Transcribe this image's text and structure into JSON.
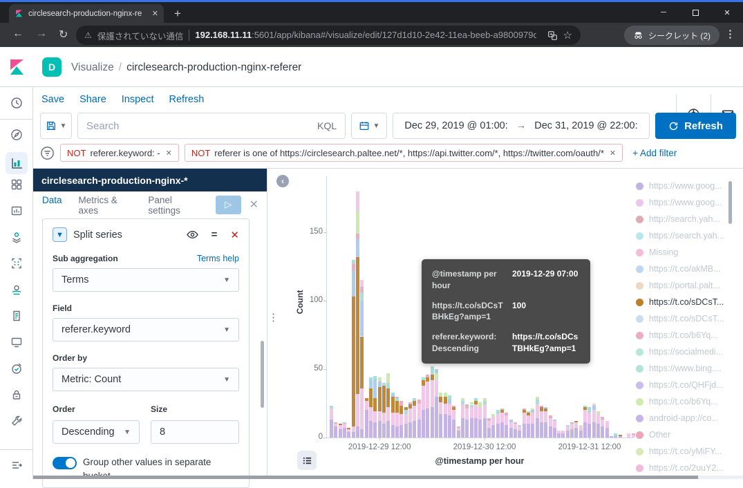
{
  "colors": {
    "primary_link": "#006BB4",
    "danger": "#bd271e",
    "panel_header_bg": "#14304f",
    "refresh_button": "#0071c2",
    "toggle_on": "#0077cc",
    "highlight_series": "#c1883c",
    "kibana_pink": "#f04e98",
    "kibana_teal": "#00bfb3"
  },
  "browser": {
    "tab_title": "circlesearch-production-nginx-re",
    "security_warning": "保護されていない通信",
    "url_host": "192.168.11.11",
    "url_rest": ":5601/app/kibana#/visualize/edit/127d1d10-2e42-11ea-beeb-a9800979c...",
    "incognito_label": "シークレット (2)"
  },
  "header": {
    "space_initial": "D",
    "breadcrumb_app": "Visualize",
    "breadcrumb_sep": "/",
    "breadcrumb_title": "circlesearch-production-nginx-referer"
  },
  "actions": [
    "Save",
    "Share",
    "Inspect",
    "Refresh"
  ],
  "query_bar": {
    "search_placeholder": "Search",
    "kql_label": "KQL",
    "date_from": "Dec 29, 2019 @ 01:00:",
    "date_to": "Dec 31, 2019 @ 22:00:",
    "refresh_label": "Refresh"
  },
  "filters": [
    {
      "prefix": "NOT",
      "text": "referer.keyword: -"
    },
    {
      "prefix": "NOT",
      "text": "referer is one of https://circlesearch.paltee.net/*, https://api.twitter.com/*, https://twitter.com/oauth/*"
    }
  ],
  "add_filter_label": "+ Add filter",
  "editor": {
    "index_pattern": "circlesearch-production-nginx-*",
    "tabs": [
      "Data",
      "Metrics & axes",
      "Panel settings"
    ],
    "active_tab": "Data",
    "split_series_label": "Split series",
    "sub_aggregation_label": "Sub aggregation",
    "terms_help_label": "Terms help",
    "sub_aggregation_value": "Terms",
    "field_label": "Field",
    "field_value": "referer.keyword",
    "order_by_label": "Order by",
    "order_by_value": "Metric: Count",
    "order_label": "Order",
    "order_value": "Descending",
    "size_label": "Size",
    "size_value": "8",
    "group_other_label": "Group other values in separate bucket"
  },
  "tooltip": {
    "rows": [
      {
        "label": "@timestamp per hour",
        "value": "2019-12-29 07:00"
      },
      {
        "label": "https://t.co/sDCsTBHkEg?amp=1",
        "value": "100"
      },
      {
        "label": "referer.keyword: Descending",
        "value": "https://t.co/sDCsTBHkEg?amp=1"
      }
    ]
  },
  "legend": {
    "items": [
      {
        "label": "https://www.goog...",
        "color": "#c1b3e3",
        "active": false
      },
      {
        "label": "https://www.goog...",
        "color": "#eec6ea",
        "active": false
      },
      {
        "label": "http://search.yah...",
        "color": "#ddacb0",
        "active": false
      },
      {
        "label": "https://search.yah...",
        "color": "#bce7e9",
        "active": false
      },
      {
        "label": "Missing",
        "color": "#f3bcd8",
        "active": false
      },
      {
        "label": "https://t.co/akMB...",
        "color": "#bdd7f1",
        "active": false
      },
      {
        "label": "https://portal.palt...",
        "color": "#eed9c4",
        "active": false
      },
      {
        "label": "https://t.co/sDCsT...",
        "color": "#b9802e",
        "active": true
      },
      {
        "label": "https://t.co/sDCsT...",
        "color": "#cbdcf2",
        "active": false
      },
      {
        "label": "https://t.co/b6Yq...",
        "color": "#eaaec0",
        "active": false
      },
      {
        "label": "https://socialmedi...",
        "color": "#b5e8d5",
        "active": false
      },
      {
        "label": "https://www.bing....",
        "color": "#b2e4da",
        "active": false
      },
      {
        "label": "https://t.co/QHFjd...",
        "color": "#cdbaee",
        "active": false
      },
      {
        "label": "https://t.co/b6Yq...",
        "color": "#d0eab0",
        "active": false
      },
      {
        "label": "android-app://co...",
        "color": "#c9b4ea",
        "active": false
      },
      {
        "label": "Other",
        "color": "#eaa5b8",
        "active": false
      },
      {
        "label": "https://t.co/yMiFY...",
        "color": "#d6eab6",
        "active": false
      },
      {
        "label": "https://t.co/2uuY2...",
        "color": "#f0bcdc",
        "active": false
      }
    ]
  },
  "chart_data": {
    "type": "bar",
    "stacked": true,
    "xlabel": "@timestamp per hour",
    "ylabel": "Count",
    "ylim": [
      0,
      190
    ],
    "y_ticks": [
      0,
      50,
      100,
      150
    ],
    "x_start": "2019-12-29 01:00",
    "interval": "1h",
    "x_tick_labels": [
      "2019-12-29 12:00",
      "2019-12-30 12:00",
      "2019-12-31 12:00"
    ],
    "x_tick_bar_index": [
      11,
      35,
      59
    ],
    "series_colors": {
      "L": "#c6b3e6",
      "P": "#f2c8e8",
      "O": "#c1883c",
      "B": "#aecdeb",
      "T": "#a9dedb",
      "G": "#cce9b2",
      "R": "#eaaec4"
    },
    "highlighted_series": "O",
    "highlighted_point": {
      "x": "2019-12-29 07:00",
      "series": "https://t.co/sDCsTBHkEg?amp=1",
      "value": 100
    },
    "bars": [
      [
        [
          "L",
          13
        ],
        [
          "P",
          8
        ],
        [
          "T",
          2
        ]
      ],
      [
        [
          "L",
          8
        ],
        [
          "P",
          2
        ],
        [
          "R",
          1
        ]
      ],
      [
        [
          "L",
          6
        ],
        [
          "P",
          3
        ],
        [
          "O",
          1
        ]
      ],
      [
        [
          "L",
          7
        ],
        [
          "P",
          3
        ],
        [
          "B",
          1
        ]
      ],
      [
        [
          "L",
          4
        ],
        [
          "P",
          2
        ],
        [
          "O",
          1
        ]
      ],
      [
        [
          "L",
          4
        ],
        [
          "P",
          4
        ],
        [
          "O",
          95
        ],
        [
          "B",
          19
        ],
        [
          "R",
          5
        ],
        [
          "T",
          3
        ]
      ],
      [
        [
          "L",
          8
        ],
        [
          "P",
          24
        ],
        [
          "O",
          100
        ],
        [
          "B",
          13
        ],
        [
          "R",
          4
        ],
        [
          "G",
          16
        ],
        [
          "P",
          15
        ]
      ],
      [
        [
          "L",
          6
        ],
        [
          "P",
          30
        ],
        [
          "O",
          38
        ],
        [
          "B",
          26
        ],
        [
          "T",
          6
        ],
        [
          "R",
          4
        ],
        [
          "P",
          5
        ]
      ],
      [
        [
          "L",
          20
        ],
        [
          "P",
          7
        ],
        [
          "O",
          2
        ]
      ],
      [
        [
          "L",
          12
        ],
        [
          "P",
          10
        ],
        [
          "O",
          14
        ],
        [
          "B",
          6
        ],
        [
          "T",
          2
        ]
      ],
      [
        [
          "L",
          11
        ],
        [
          "P",
          8
        ],
        [
          "O",
          10
        ],
        [
          "B",
          14
        ],
        [
          "T",
          2
        ]
      ],
      [
        [
          "L",
          12
        ],
        [
          "P",
          7
        ],
        [
          "O",
          18
        ],
        [
          "B",
          4
        ],
        [
          "G",
          3
        ]
      ],
      [
        [
          "L",
          10
        ],
        [
          "P",
          8
        ],
        [
          "O",
          20
        ],
        [
          "T",
          2
        ]
      ],
      [
        [
          "L",
          12
        ],
        [
          "P",
          10
        ],
        [
          "O",
          14
        ],
        [
          "T",
          4
        ],
        [
          "G",
          7
        ]
      ],
      [
        [
          "L",
          9
        ],
        [
          "P",
          9
        ],
        [
          "O",
          12
        ],
        [
          "B",
          2
        ],
        [
          "T",
          1
        ]
      ],
      [
        [
          "L",
          8
        ],
        [
          "P",
          10
        ],
        [
          "O",
          9
        ],
        [
          "T",
          2
        ],
        [
          "R",
          1
        ]
      ],
      [
        [
          "L",
          9
        ],
        [
          "P",
          8
        ],
        [
          "O",
          6
        ],
        [
          "R",
          4
        ]
      ],
      [
        [
          "L",
          10
        ],
        [
          "P",
          7
        ],
        [
          "T",
          3
        ],
        [
          "O",
          2
        ]
      ],
      [
        [
          "L",
          11
        ],
        [
          "P",
          10
        ],
        [
          "O",
          3
        ],
        [
          "R",
          2
        ]
      ],
      [
        [
          "L",
          12
        ],
        [
          "P",
          11
        ],
        [
          "O",
          4
        ],
        [
          "T",
          2
        ]
      ],
      [
        [
          "L",
          13
        ],
        [
          "P",
          12
        ],
        [
          "R",
          3
        ]
      ],
      [
        [
          "L",
          20
        ],
        [
          "P",
          18
        ],
        [
          "O",
          4
        ],
        [
          "T",
          2
        ]
      ],
      [
        [
          "L",
          21
        ],
        [
          "P",
          20
        ],
        [
          "O",
          3
        ],
        [
          "R",
          2
        ]
      ],
      [
        [
          "L",
          22
        ],
        [
          "P",
          20
        ],
        [
          "O",
          4
        ],
        [
          "T",
          6
        ]
      ],
      [
        [
          "L",
          30
        ],
        [
          "P",
          12
        ],
        [
          "G",
          5
        ],
        [
          "B",
          3
        ]
      ],
      [
        [
          "L",
          17
        ],
        [
          "P",
          9
        ],
        [
          "O",
          4
        ],
        [
          "G",
          3
        ]
      ],
      [
        [
          "L",
          17
        ],
        [
          "P",
          8
        ],
        [
          "O",
          5
        ],
        [
          "G",
          3
        ]
      ],
      [
        [
          "L",
          16
        ],
        [
          "P",
          9
        ],
        [
          "B",
          3
        ],
        [
          "T",
          3
        ]
      ],
      [
        [
          "L",
          13
        ],
        [
          "P",
          7
        ],
        [
          "O",
          2
        ],
        [
          "R",
          1
        ]
      ],
      [
        [
          "L",
          5
        ],
        [
          "P",
          2
        ],
        [
          "R",
          1
        ]
      ],
      [
        [
          "L",
          14
        ],
        [
          "P",
          10
        ],
        [
          "T",
          3
        ],
        [
          "G",
          2
        ]
      ],
      [
        [
          "L",
          13
        ],
        [
          "P",
          8
        ],
        [
          "R",
          3
        ]
      ],
      [
        [
          "L",
          14
        ],
        [
          "P",
          8
        ],
        [
          "T",
          2
        ],
        [
          "G",
          2
        ]
      ],
      [
        [
          "L",
          14
        ],
        [
          "P",
          10
        ],
        [
          "O",
          3
        ],
        [
          "T",
          2
        ]
      ],
      [
        [
          "L",
          13
        ],
        [
          "P",
          9
        ],
        [
          "G",
          4
        ]
      ],
      [
        [
          "L",
          14
        ],
        [
          "P",
          10
        ],
        [
          "T",
          3
        ],
        [
          "G",
          2
        ]
      ],
      [
        [
          "L",
          7
        ],
        [
          "P",
          5
        ],
        [
          "R",
          2
        ]
      ],
      [
        [
          "L",
          9
        ],
        [
          "P",
          6
        ],
        [
          "G",
          2
        ]
      ],
      [
        [
          "L",
          10
        ],
        [
          "P",
          7
        ],
        [
          "T",
          3
        ]
      ],
      [
        [
          "L",
          11
        ],
        [
          "P",
          7
        ],
        [
          "O",
          2
        ],
        [
          "B",
          1
        ]
      ],
      [
        [
          "L",
          9
        ],
        [
          "P",
          7
        ],
        [
          "R",
          2
        ]
      ],
      [
        [
          "L",
          7
        ],
        [
          "P",
          4
        ],
        [
          "B",
          2
        ]
      ],
      [
        [
          "L",
          6
        ],
        [
          "P",
          4
        ],
        [
          "R",
          1
        ]
      ],
      [
        [
          "L",
          5
        ],
        [
          "P",
          3
        ],
        [
          "T",
          1
        ]
      ],
      [
        [
          "L",
          10
        ],
        [
          "P",
          8
        ],
        [
          "O",
          2
        ],
        [
          "R",
          1
        ]
      ],
      [
        [
          "L",
          10
        ],
        [
          "P",
          6
        ],
        [
          "O",
          2
        ],
        [
          "T",
          1
        ]
      ],
      [
        [
          "L",
          10
        ],
        [
          "P",
          8
        ],
        [
          "B",
          2
        ],
        [
          "G",
          1
        ]
      ],
      [
        [
          "L",
          14
        ],
        [
          "P",
          10
        ],
        [
          "T",
          4
        ],
        [
          "G",
          2
        ]
      ],
      [
        [
          "L",
          11
        ],
        [
          "P",
          8
        ],
        [
          "O",
          3
        ],
        [
          "R",
          1
        ]
      ],
      [
        [
          "L",
          11
        ],
        [
          "P",
          8
        ],
        [
          "O",
          2
        ],
        [
          "B",
          1
        ]
      ],
      [
        [
          "L",
          8
        ],
        [
          "P",
          6
        ],
        [
          "R",
          2
        ]
      ],
      [
        [
          "L",
          7
        ],
        [
          "P",
          5
        ],
        [
          "B",
          1
        ]
      ],
      [
        [
          "L",
          3
        ],
        [
          "P",
          2
        ]
      ],
      [
        [
          "L",
          3
        ],
        [
          "P",
          2
        ]
      ],
      [
        [
          "L",
          5
        ],
        [
          "P",
          3
        ],
        [
          "T",
          1
        ]
      ],
      [
        [
          "L",
          6
        ],
        [
          "P",
          4
        ],
        [
          "R",
          1
        ]
      ],
      [
        [
          "L",
          7
        ],
        [
          "P",
          4
        ],
        [
          "O",
          1
        ]
      ],
      [
        [
          "L",
          5
        ],
        [
          "P",
          3
        ],
        [
          "G",
          1
        ]
      ],
      [
        [
          "L",
          11
        ],
        [
          "P",
          9
        ],
        [
          "O",
          2
        ],
        [
          "T",
          1
        ]
      ],
      [
        [
          "L",
          10
        ],
        [
          "P",
          8
        ],
        [
          "T",
          3
        ],
        [
          "B",
          1
        ]
      ],
      [
        [
          "L",
          11
        ],
        [
          "P",
          9
        ],
        [
          "B",
          4
        ],
        [
          "R",
          1
        ]
      ],
      [
        [
          "L",
          10
        ],
        [
          "P",
          7
        ],
        [
          "G",
          2
        ]
      ],
      [
        [
          "L",
          8
        ],
        [
          "P",
          5
        ],
        [
          "R",
          2
        ]
      ],
      [
        [
          "L",
          7
        ],
        [
          "P",
          4
        ],
        [
          "P",
          1
        ]
      ],
      [
        [
          "L",
          1
        ]
      ],
      [
        [
          "L",
          1
        ],
        [
          "T",
          2
        ]
      ],
      [
        [
          "L",
          1
        ],
        [
          "O",
          1
        ]
      ],
      [],
      [
        [
          "P",
          3
        ]
      ],
      [
        [
          "P",
          2
        ],
        [
          "R",
          1
        ]
      ]
    ]
  }
}
